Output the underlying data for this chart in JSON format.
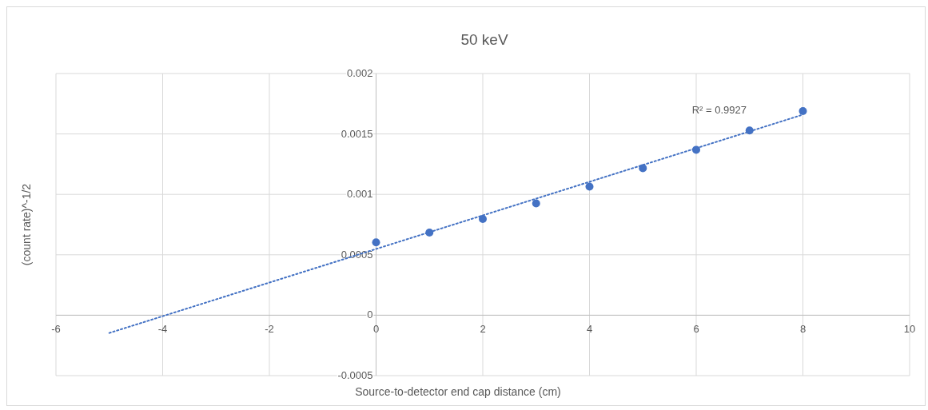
{
  "chart_data": {
    "type": "scatter",
    "title": "50 keV",
    "xlabel": "Source-to-detector end cap distance (cm)",
    "ylabel": "(count rate)^-1/2",
    "xlim": [
      -6,
      10
    ],
    "xticks": [
      -6,
      -4,
      -2,
      0,
      2,
      4,
      6,
      8,
      10
    ],
    "ylim": [
      -0.0005,
      0.002
    ],
    "yticks": [
      -0.0005,
      0,
      0.0005,
      0.001,
      0.0015,
      0.002
    ],
    "grid": true,
    "marker": "circle",
    "series": [
      {
        "color": "#4472c4",
        "x": [
          0,
          1,
          2,
          3,
          4,
          5,
          6,
          7,
          8
        ],
        "values": [
          0.000603,
          0.000684,
          0.000796,
          0.000925,
          0.001064,
          0.001217,
          0.001369,
          0.001529,
          0.001689
        ]
      },
      {
        "type": "line",
        "color": "#4472c4",
        "line_style": "dotted",
        "marker": "none",
        "x": [
          -5,
          8
        ],
        "values": [
          -0.000147,
          0.00166
        ]
      }
    ],
    "annotations": [
      "R² = 0.9927"
    ]
  }
}
